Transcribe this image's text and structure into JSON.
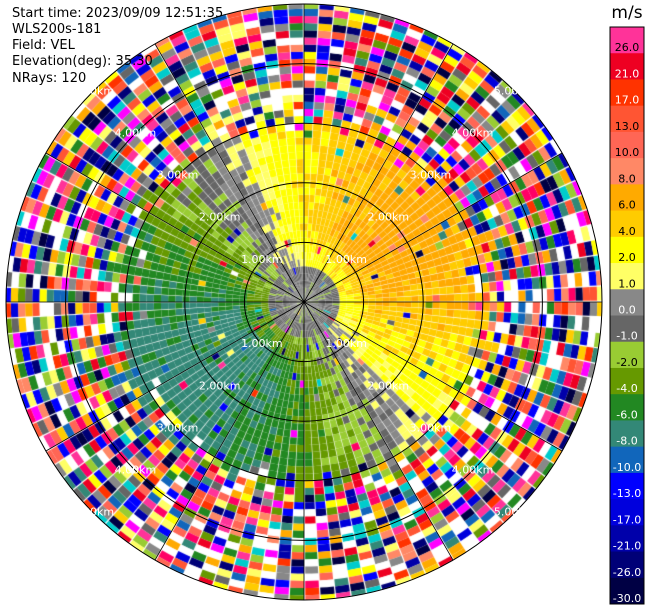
{
  "header": {
    "start_time": "Start time: 2023/09/09 12:51:35",
    "instrument": "WLS200s-181",
    "field": "Field: VEL",
    "elevation": "Elevation(deg): 35.30",
    "nrays": "NRays: 120"
  },
  "colorbar": {
    "unit": "m/s",
    "levels": [
      {
        "label": "26.0",
        "color": "#ff3399"
      },
      {
        "label": "21.0",
        "color": "#ee0022"
      },
      {
        "label": "17.0",
        "color": "#ff3300"
      },
      {
        "label": "13.0",
        "color": "#ff5533"
      },
      {
        "label": "10.0",
        "color": "#ff6655"
      },
      {
        "label": "8.0",
        "color": "#ff8866"
      },
      {
        "label": "6.0",
        "color": "#ffaa00"
      },
      {
        "label": "4.0",
        "color": "#ffcc00"
      },
      {
        "label": "2.0",
        "color": "#ffff00"
      },
      {
        "label": "1.0",
        "color": "#ffff66"
      },
      {
        "label": "0.0",
        "color": "#888888"
      },
      {
        "label": "-1.0",
        "color": "#666666"
      },
      {
        "label": "-2.0",
        "color": "#99cc33"
      },
      {
        "label": "-4.0",
        "color": "#669900"
      },
      {
        "label": "-6.0",
        "color": "#228822"
      },
      {
        "label": "-8.0",
        "color": "#338877"
      },
      {
        "label": "-10.0",
        "color": "#1166bb"
      },
      {
        "label": "-13.0",
        "color": "#0000ff"
      },
      {
        "label": "-17.0",
        "color": "#0000dd"
      },
      {
        "label": "-21.0",
        "color": "#0000aa"
      },
      {
        "label": "-26.0",
        "color": "#000077"
      },
      {
        "label": "-30.0",
        "color": "#000044"
      }
    ]
  },
  "chart_data": {
    "type": "heatmap",
    "subtype": "polar PPI scan",
    "field": "VEL",
    "nrays": 120,
    "max_range_km": 5.0,
    "range_rings_km": [
      1.0,
      2.0,
      3.0,
      4.0,
      5.0
    ],
    "ring_labels": [
      "1.00km",
      "2.00km",
      "3.00km",
      "4.00km",
      "5.00km"
    ],
    "clean_data_range_km": 3.0,
    "bands": [
      {
        "range_km": [
          0.0,
          0.5
        ],
        "dominant": "-1.0 to 0.0 (grey)"
      },
      {
        "range_km": [
          0.5,
          1.5
        ],
        "north_east": "2.0 to 6.0 (yellow/orange)",
        "south_west": "-4.0 to -2.0 (olive/green)"
      },
      {
        "range_km": [
          1.5,
          3.0
        ],
        "north_east": "2.0 to 8.0 (yellow/orange)",
        "south_west": "-8.0 to -4.0 (green)"
      },
      {
        "range_km": [
          3.0,
          5.0
        ],
        "dominant": "noise (all colors)"
      }
    ]
  }
}
